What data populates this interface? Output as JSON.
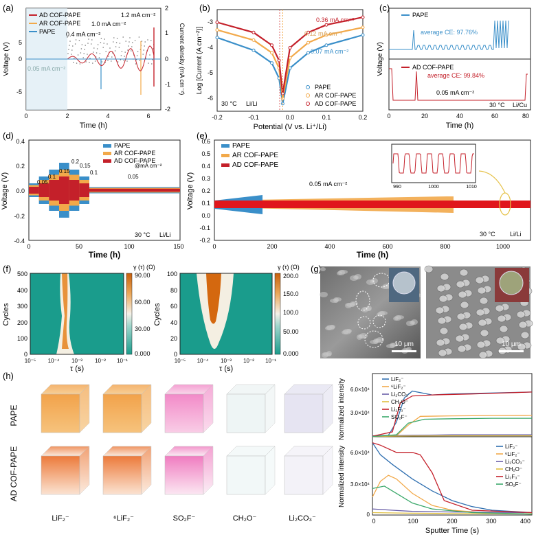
{
  "colors": {
    "pape": "#3a8fc9",
    "ar": "#f2a94a",
    "ad": "#c4202a",
    "heat_low": "#1a9c8c",
    "heat_high": "#d4680f",
    "axis": "#222222"
  },
  "panels": {
    "a": {
      "label": "(a)",
      "xlabel": "Time (h)",
      "ylabel_left": "Voltage (V)",
      "ylabel_right": "Current density (mA cm⁻²)",
      "xticks": [
        "0",
        "2",
        "4",
        "6"
      ],
      "yticks_left": [
        "5",
        "0",
        "-5"
      ],
      "yticks_right": [
        "2",
        "1",
        "0",
        "-1",
        "-2"
      ],
      "legend": [
        "AD COF-PAPE",
        "AR COF-PAPE",
        "PAPE"
      ],
      "annotations": [
        "0.05 mA cm⁻²",
        "0.4 mA cm⁻²",
        "1.0 mA cm⁻²",
        "1.2 mA cm⁻²"
      ]
    },
    "b": {
      "label": "(b)",
      "xlabel": "Potential (V vs. Li⁺/Li)",
      "ylabel": "Log [Current (A cm⁻²)]",
      "xticks": [
        "-0.2",
        "-0.1",
        "0.0",
        "0.1",
        "0.2"
      ],
      "yticks": [
        "-3",
        "-4",
        "-5",
        "-6"
      ],
      "legend": [
        "PAPE",
        "AR COF-PAPE",
        "AD COF-PAPE"
      ],
      "annotations": [
        "0.36 mA cm⁻²",
        "0.12 mA cm⁻²",
        "0.07 mA cm⁻²"
      ],
      "condition": "30 °C",
      "cell": "Li/Li"
    },
    "c": {
      "label": "(c)",
      "xlabel": "Time (h)",
      "ylabel": "Voltage (V)",
      "xticks": [
        "0",
        "20",
        "40",
        "60",
        "80"
      ],
      "legend_top": "PAPE",
      "legend_bottom": "AD COF-PAPE",
      "ce_top": "average CE: 97.76%",
      "ce_bottom": "average CE: 99.84%",
      "current": "0.05 mA cm⁻²",
      "condition": "30 °C",
      "cell": "Li/Cu"
    },
    "d": {
      "label": "(d)",
      "xlabel": "Time (h)",
      "ylabel": "Voltage (V)",
      "xticks": [
        "0",
        "50",
        "100",
        "150"
      ],
      "yticks": [
        "0.4",
        "0.2",
        "0.0",
        "-0.2",
        "-0.4"
      ],
      "legend": [
        "PAPE",
        "AR COF-PAPE",
        "AD COF-PAPE"
      ],
      "rates": [
        "0.05",
        "0.1",
        "0.15",
        "0.2",
        "0.15",
        "0.1",
        "0.05"
      ],
      "unit": "@mA cm⁻²",
      "condition": "30 °C",
      "cell": "Li/Li"
    },
    "e": {
      "label": "(e)",
      "xlabel": "Time (h)",
      "ylabel": "Voltage (V)",
      "xticks": [
        "0",
        "200",
        "400",
        "600",
        "800",
        "1000"
      ],
      "yticks": [
        "0.6",
        "0.5",
        "0.4",
        "0.3",
        "0.2",
        "0.1",
        "0.0",
        "-0.1",
        "-0.2"
      ],
      "legend": [
        "PAPE",
        "AR COF-PAPE",
        "AD COF-PAPE"
      ],
      "current": "0.05 mA cm⁻²",
      "inset_xticks": [
        "990",
        "1000",
        "1010"
      ],
      "condition": "30 °C",
      "cell": "Li/Li"
    },
    "f": {
      "label": "(f)",
      "ylabel": "Cycles",
      "xlabel": "τ (s)",
      "xticks": [
        "10⁻⁵",
        "10⁻⁴",
        "10⁻³",
        "10⁻²",
        "10⁻¹"
      ],
      "left_yticks": [
        "500",
        "400",
        "300",
        "200",
        "100",
        "0"
      ],
      "right_yticks": [
        "100",
        "80",
        "60",
        "40",
        "20",
        "0"
      ],
      "cbar_title": "γ (τ) (Ω)",
      "left_cbar": [
        "90.00",
        "60.00",
        "30.00",
        "0.000"
      ],
      "right_cbar": [
        "200.0",
        "150.0",
        "100.0",
        "50.00",
        "0.000"
      ]
    },
    "g": {
      "label": "(g)",
      "scale_left": "10 μm",
      "scale_right": "10 μm"
    },
    "h": {
      "label": "(h)",
      "row_top": "PAPE",
      "row_bottom": "AD COF-PAPE",
      "species": [
        "LiF₂⁻",
        "⁶LiF₂⁻",
        "SO₂F⁻",
        "CH₂O⁻",
        "Li₂CO₃⁻"
      ],
      "ylabel": "Normalized intensity",
      "xlabel": "Sputter Time (s)",
      "xticks": [
        "0",
        "100",
        "200",
        "300",
        "400"
      ],
      "yticks": [
        "6.0×10⁴",
        "3.0×10⁴",
        "0"
      ],
      "legend_top": [
        "LiF₂⁻",
        "⁶LiF₂⁻",
        "Li₂CO₃⁻",
        "CH₂O⁻",
        "Li₂F₃⁻",
        "SO₂F⁻"
      ],
      "legend_bottom": [
        "LiF₂⁻",
        "⁶LiF₂⁻",
        "Li₂CO₃⁻",
        "CH₂O⁻",
        "Li₂F₃⁻",
        "SO₂F⁻"
      ]
    }
  },
  "chart_data": [
    {
      "type": "line",
      "panel": "b",
      "title": "",
      "xlabel": "Potential (V vs. Li⁺/Li)",
      "ylabel": "Log [Current (A cm⁻²)]",
      "xlim": [
        -0.2,
        0.2
      ],
      "ylim": [
        -6.5,
        -2.5
      ],
      "series": [
        {
          "name": "PAPE",
          "x": [
            -0.2,
            -0.1,
            -0.05,
            -0.03,
            -0.02,
            0.0,
            0.05,
            0.1,
            0.2
          ],
          "y": [
            -3.6,
            -4.1,
            -4.6,
            -5.2,
            -6.2,
            -4.8,
            -4.2,
            -3.9,
            -3.5
          ]
        },
        {
          "name": "AR COF-PAPE",
          "x": [
            -0.2,
            -0.1,
            -0.05,
            -0.03,
            -0.02,
            0.0,
            0.05,
            0.1,
            0.2
          ],
          "y": [
            -3.3,
            -3.7,
            -4.2,
            -4.8,
            -6.0,
            -4.4,
            -3.8,
            -3.5,
            -3.2
          ]
        },
        {
          "name": "AD COF-PAPE",
          "x": [
            -0.2,
            -0.1,
            -0.05,
            -0.03,
            -0.02,
            0.0,
            0.05,
            0.1,
            0.2
          ],
          "y": [
            -3.0,
            -3.4,
            -3.9,
            -4.5,
            -5.8,
            -4.0,
            -3.4,
            -3.1,
            -2.8
          ]
        }
      ]
    },
    {
      "type": "line",
      "panel": "h-top",
      "xlabel": "Sputter Time (s)",
      "ylabel": "Normalized intensity",
      "xlim": [
        0,
        400
      ],
      "ylim": [
        0,
        65000
      ],
      "series": [
        {
          "name": "LiF₂⁻",
          "x": [
            0,
            40,
            60,
            80,
            100,
            150,
            200,
            300,
            400
          ],
          "y": [
            500,
            1500,
            15000,
            40000,
            47000,
            43000,
            44000,
            45000,
            46000
          ]
        },
        {
          "name": "⁶LiF₂⁻",
          "x": [
            0,
            60,
            90,
            120,
            200,
            300,
            400
          ],
          "y": [
            300,
            1000,
            12000,
            21000,
            21500,
            21800,
            22000
          ]
        },
        {
          "name": "Li₂CO₃⁻",
          "x": [
            0,
            100,
            200,
            300,
            400
          ],
          "y": [
            1000,
            1500,
            2000,
            2000,
            2000
          ]
        },
        {
          "name": "CH₂O⁻",
          "x": [
            0,
            100,
            200,
            300,
            400
          ],
          "y": [
            500,
            800,
            1000,
            1000,
            1000
          ]
        },
        {
          "name": "Li₂F₃⁻",
          "x": [
            0,
            50,
            70,
            100,
            150,
            250,
            400
          ],
          "y": [
            500,
            5000,
            35000,
            42000,
            43000,
            44000,
            46000
          ]
        },
        {
          "name": "SO₂F⁻",
          "x": [
            0,
            60,
            90,
            130,
            200,
            300,
            400
          ],
          "y": [
            300,
            2000,
            14000,
            18000,
            18500,
            19000,
            19000
          ]
        }
      ]
    },
    {
      "type": "line",
      "panel": "h-bottom",
      "xlabel": "Sputter Time (s)",
      "ylabel": "Normalized intensity",
      "xlim": [
        0,
        400
      ],
      "ylim": [
        0,
        65000
      ],
      "series": [
        {
          "name": "LiF₂⁻",
          "x": [
            0,
            20,
            50,
            100,
            150,
            200,
            250,
            300,
            400
          ],
          "y": [
            60000,
            50000,
            42000,
            30000,
            20000,
            12000,
            7000,
            4000,
            2000
          ]
        },
        {
          "name": "⁶LiF₂⁻",
          "x": [
            0,
            20,
            40,
            60,
            100,
            150,
            200,
            300,
            400
          ],
          "y": [
            15000,
            28000,
            33000,
            30000,
            18000,
            8000,
            4000,
            1500,
            800
          ]
        },
        {
          "name": "Li₂CO₃⁻",
          "x": [
            0,
            50,
            100,
            200,
            400
          ],
          "y": [
            5000,
            4000,
            3000,
            2500,
            2000
          ]
        },
        {
          "name": "CH₂O⁻",
          "x": [
            0,
            100,
            200,
            400
          ],
          "y": [
            2000,
            1500,
            1200,
            1000
          ]
        },
        {
          "name": "Li₂F₃⁻",
          "x": [
            0,
            20,
            60,
            100,
            120,
            150,
            180,
            250,
            400
          ],
          "y": [
            60000,
            58000,
            52000,
            52000,
            50000,
            35000,
            12000,
            4000,
            2000
          ]
        },
        {
          "name": "SO₂F⁻",
          "x": [
            0,
            30,
            60,
            100,
            150,
            250,
            400
          ],
          "y": [
            22000,
            24000,
            18000,
            10000,
            5000,
            2000,
            800
          ]
        }
      ]
    }
  ]
}
